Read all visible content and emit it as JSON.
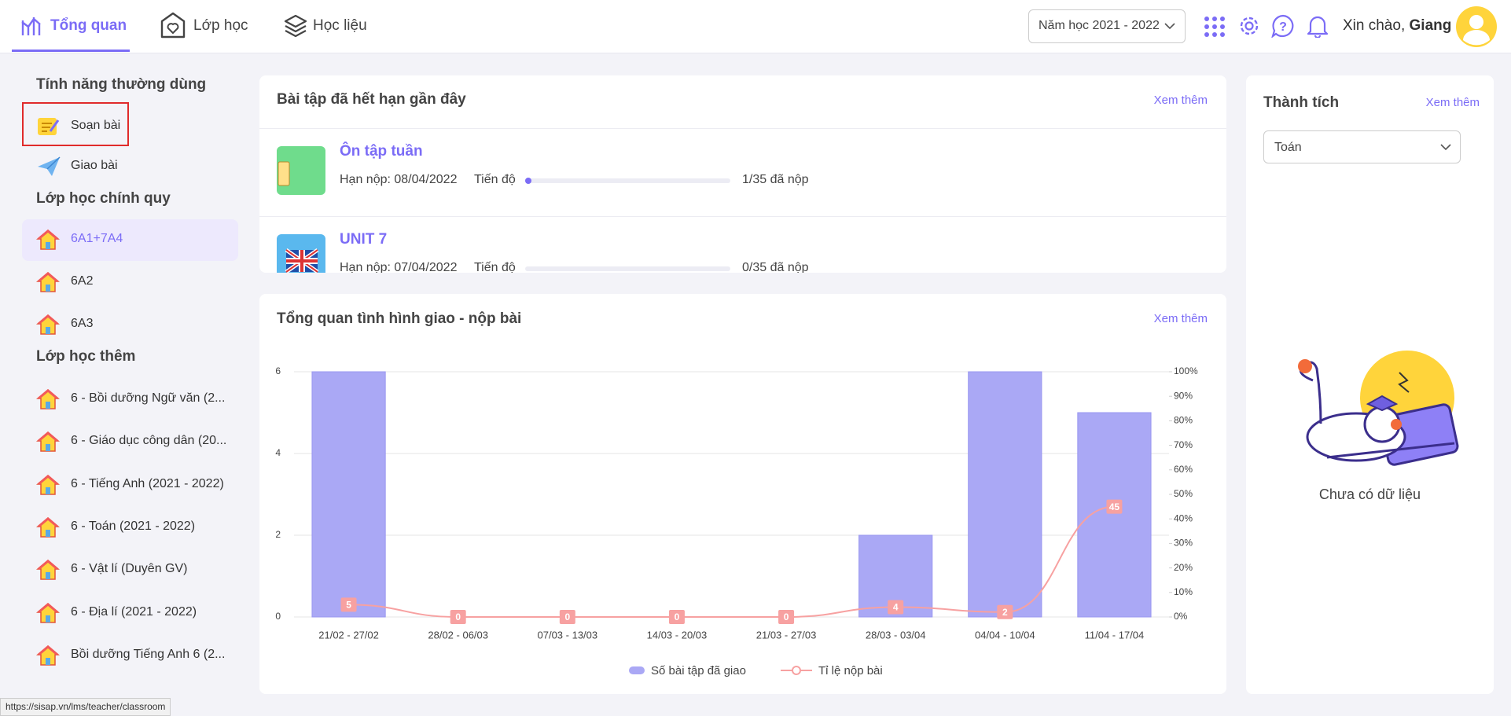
{
  "nav": {
    "tabs": [
      "Tổng quan",
      "Lớp học",
      "Học liệu"
    ],
    "year_select": "Năm học 2021 - 2022",
    "greeting": "Xin chào,",
    "user": "Giang"
  },
  "sidebar": {
    "sections": [
      {
        "title": "Tính năng thường dùng",
        "items": [
          "Soạn bài",
          "Giao bài"
        ]
      },
      {
        "title": "Lớp học chính quy",
        "items": [
          "6A1+7A4",
          "6A2",
          "6A3"
        ]
      },
      {
        "title": "Lớp học thêm",
        "items": [
          "6 - Bồi dưỡng Ngữ văn (2...",
          "6 - Giáo dục công dân (20...",
          "6 - Tiếng Anh (2021 - 2022)",
          "6 - Toán (2021 - 2022)",
          "6 - Vật lí (Duyên GV)",
          "6 - Địa lí (2021 - 2022)",
          "Bồi dưỡng Tiếng Anh 6 (2..."
        ]
      }
    ]
  },
  "assignments": {
    "title": "Bài tập đã hết hạn gần đây",
    "more": "Xem thêm",
    "items": [
      {
        "name": "Ôn tập tuần",
        "deadline": "Hạn nộp: 08/04/2022",
        "progress_label": "Tiến độ",
        "submitted": "1/35 đã nộp"
      },
      {
        "name": "UNIT 7",
        "deadline": "Hạn nộp: 07/04/2022",
        "progress_label": "Tiến độ",
        "submitted": "0/35 đã nộp"
      }
    ]
  },
  "achievements": {
    "title": "Thành tích",
    "more": "Xem thêm",
    "subject": "Toán",
    "empty": "Chưa có dữ liệu"
  },
  "status_url": "https://sisap.vn/lms/teacher/classroom",
  "chart_data": {
    "type": "bar",
    "title": "Tổng quan tình hình giao - nộp bài",
    "more": "Xem thêm",
    "categories": [
      "21/02 - 27/02",
      "28/02 - 06/03",
      "07/03 - 13/03",
      "14/03 - 20/03",
      "21/03 - 27/03",
      "28/03 - 03/04",
      "04/04 - 10/04",
      "11/04 - 17/04"
    ],
    "series": [
      {
        "name": "Số bài tập đã giao",
        "color": "#aaa8f5",
        "values": [
          6,
          0,
          0,
          0,
          0,
          2,
          6,
          5
        ]
      },
      {
        "name": "Tỉ lệ nộp bài",
        "color": "#f7a1a1",
        "type": "line",
        "axis": "y2",
        "values": [
          5,
          0,
          0,
          0,
          0,
          4,
          2,
          45
        ]
      }
    ],
    "ylim": [
      0,
      6
    ],
    "yticks": [
      0,
      2,
      4,
      6
    ],
    "y2lim": [
      0,
      100
    ],
    "y2ticks": [
      {
        "value": 0,
        "label": "0%"
      },
      {
        "value": 10,
        "label": "10%"
      },
      {
        "value": 20,
        "label": "20%"
      },
      {
        "value": 30,
        "label": "30%"
      },
      {
        "value": 40,
        "label": "40%"
      },
      {
        "value": 50,
        "label": "50%"
      },
      {
        "value": 60,
        "label": "60%"
      },
      {
        "value": 70,
        "label": "70%"
      },
      {
        "value": 80,
        "label": "80%"
      },
      {
        "value": 90,
        "label": "90%"
      },
      {
        "value": 100,
        "label": "100%"
      }
    ],
    "grid": true,
    "legend": "bottom"
  }
}
